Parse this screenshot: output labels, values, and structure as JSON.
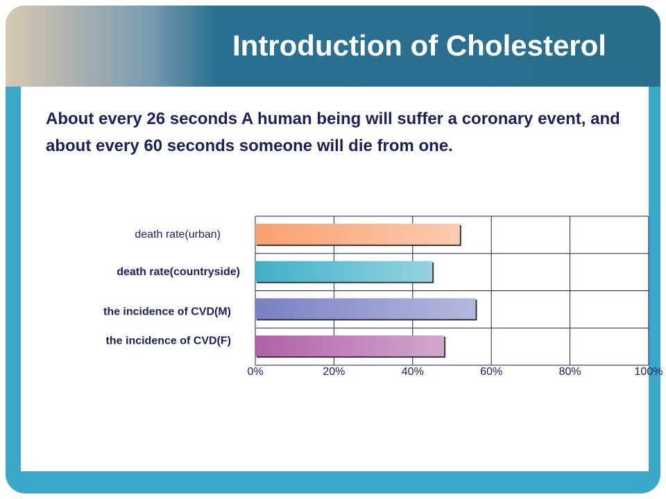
{
  "title": "Introduction of Cholesterol",
  "text": "About every 26 seconds A human being  will suffer a coronary event, and about every 60 seconds someone will die from one.",
  "chart_data": {
    "type": "bar",
    "orientation": "horizontal",
    "categories": [
      "death rate(urban)",
      "death rate(countryside)",
      "the incidence of CVD(M)",
      "the incidence of CVD(F)"
    ],
    "values": [
      52,
      45,
      56,
      48
    ],
    "colors": [
      "#f9a070",
      "#3fb0c8",
      "#7880c4",
      "#b060a8"
    ],
    "xlim": [
      0,
      100
    ],
    "xticks": [
      {
        "value": 0,
        "label": "0%"
      },
      {
        "value": 20,
        "label": "20%"
      },
      {
        "value": 40,
        "label": "40%"
      },
      {
        "value": 60,
        "label": "60%"
      },
      {
        "value": 80,
        "label": "80%"
      },
      {
        "value": 100,
        "label": "100%"
      }
    ],
    "grid": true
  }
}
